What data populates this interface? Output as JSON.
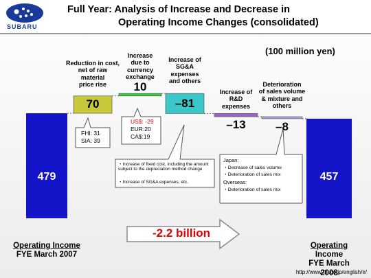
{
  "header": {
    "logo": "SUBARU",
    "title": [
      "Full Year: Analysis of Increase and Decrease in",
      "Operating Income Changes (consolidated)"
    ]
  },
  "chart_data": {
    "type": "waterfall",
    "unit": "(100 million yen)",
    "categories": [
      "Operating Income\nFYE March 2007",
      "Reduction in cost,\nnet of raw\nmaterial\nprice rise",
      "Increase\ndue to\ncurrency\nexchange",
      "Increase of\nSG&A\nexpenses\nand others",
      "Increase of\nR&D\nexpenses",
      "Deterioration\nof sales volume\n& mixture and\nothers",
      "Operating Income\nFYE March 2008"
    ],
    "values": [
      479,
      70,
      10,
      -81,
      -13,
      -8,
      457
    ],
    "value_labels": [
      "479",
      "70",
      "10",
      "–81",
      "–13",
      "–8",
      "457"
    ],
    "colors": [
      "#1414c8",
      "#c8c83c",
      "#33cc33",
      "#3cc8c8",
      "#9966cc",
      "#b7a6e6",
      "#1414c8"
    ],
    "annotations": {
      "cost": [
        "FHI: 31",
        "SIA: 39"
      ],
      "currency": [
        "US$: -29",
        "EUR:20",
        "CA$:19"
      ],
      "sga": [
        "・Increase of fixed cost, including the amount subject to the depreciation method change",
        "・Increase of SG&A expenses, etc."
      ],
      "sales": [
        "Japan:",
        "・Decrease of sales volume",
        "・Deterioration of sales mix",
        "Overseas:",
        "・Deterioration of sales mix"
      ],
      "change": "-2.2 billion"
    },
    "source": "http://www.fhi.co.jp/english/ir/"
  }
}
